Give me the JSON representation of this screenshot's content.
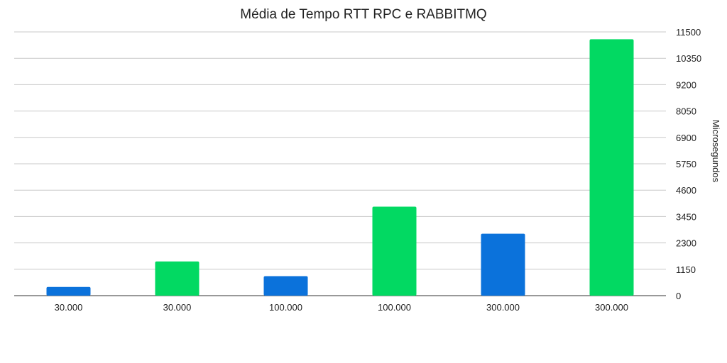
{
  "chart_data": {
    "type": "bar",
    "title": "Média de Tempo RTT RPC e RABBITMQ",
    "xlabel": "",
    "ylabel": "Microsegundos",
    "y_axis_side": "right",
    "ylim": [
      0,
      11500
    ],
    "yticks": [
      0,
      1150,
      2300,
      3450,
      4600,
      5750,
      6900,
      8050,
      9200,
      10350,
      11500
    ],
    "grid": true,
    "categories": [
      "30.000",
      "30.000",
      "100.000",
      "100.000",
      "300.000",
      "300.000"
    ],
    "values": [
      380,
      1490,
      850,
      3880,
      2700,
      11180
    ],
    "bar_colors": [
      "#0b72db",
      "#02d962",
      "#0b72db",
      "#02d962",
      "#0b72db",
      "#02d962"
    ]
  }
}
